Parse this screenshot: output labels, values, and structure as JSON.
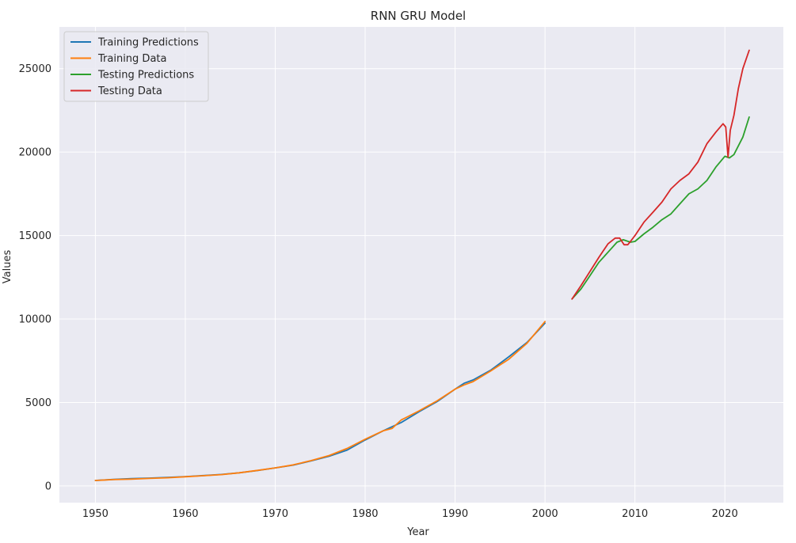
{
  "chart_data": {
    "type": "line",
    "title": "RNN GRU Model",
    "xlabel": "Year",
    "ylabel": "Values",
    "xlim": [
      1946,
      2026.5
    ],
    "ylim": [
      -1000,
      27500
    ],
    "xticks": [
      1950,
      1960,
      1970,
      1980,
      1990,
      2000,
      2010,
      2020
    ],
    "yticks": [
      0,
      5000,
      10000,
      15000,
      20000,
      25000
    ],
    "grid": true,
    "legend_position": "top-left",
    "background": "#eaeaf2",
    "series": [
      {
        "name": "Training Predictions",
        "color": "#1f77b4",
        "x": [
          1950,
          1952,
          1954,
          1956,
          1958,
          1960,
          1962,
          1964,
          1966,
          1968,
          1970,
          1972,
          1974,
          1976,
          1978,
          1980,
          1982,
          1984,
          1986,
          1988,
          1990,
          1991,
          1992,
          1994,
          1996,
          1998,
          2000
        ],
        "y": [
          330,
          390,
          440,
          470,
          510,
          560,
          620,
          690,
          790,
          920,
          1080,
          1250,
          1500,
          1780,
          2150,
          2750,
          3300,
          3800,
          4450,
          5050,
          5800,
          6150,
          6350,
          6950,
          7750,
          8600,
          9750
        ]
      },
      {
        "name": "Training Data",
        "color": "#ff7f0e",
        "x": [
          1950,
          1952,
          1954,
          1956,
          1958,
          1960,
          1962,
          1964,
          1966,
          1968,
          1970,
          1972,
          1974,
          1976,
          1978,
          1980,
          1981,
          1982,
          1983,
          1984,
          1986,
          1988,
          1990,
          1991,
          1992,
          1994,
          1996,
          1998,
          2000
        ],
        "y": [
          330,
          380,
          410,
          450,
          490,
          550,
          610,
          680,
          790,
          930,
          1080,
          1260,
          1520,
          1820,
          2250,
          2800,
          3050,
          3300,
          3450,
          3950,
          4500,
          5100,
          5800,
          6050,
          6250,
          6900,
          7600,
          8550,
          9850
        ]
      },
      {
        "name": "Testing Predictions",
        "color": "#2ca02c",
        "x": [
          2003,
          2004,
          2005,
          2006,
          2007,
          2008,
          2008.7,
          2009.5,
          2010,
          2011,
          2012,
          2013,
          2014,
          2015,
          2016,
          2017,
          2018,
          2019,
          2020,
          2020.5,
          2021,
          2022,
          2022.7
        ],
        "y": [
          11200,
          11800,
          12600,
          13400,
          14000,
          14600,
          14750,
          14600,
          14650,
          15100,
          15500,
          15950,
          16300,
          16900,
          17500,
          17800,
          18300,
          19100,
          19750,
          19650,
          19850,
          20900,
          22100
        ]
      },
      {
        "name": "Testing Data",
        "color": "#d62728",
        "x": [
          2003,
          2004,
          2005,
          2006,
          2007,
          2007.8,
          2008.3,
          2008.8,
          2009.2,
          2009.5,
          2010,
          2011,
          2012,
          2013,
          2014,
          2015,
          2016,
          2017,
          2018,
          2019,
          2019.8,
          2020.1,
          2020.35,
          2020.6,
          2021,
          2021.5,
          2022,
          2022.7
        ],
        "y": [
          11200,
          12000,
          12850,
          13700,
          14500,
          14850,
          14850,
          14450,
          14450,
          14650,
          15000,
          15800,
          16400,
          17000,
          17800,
          18300,
          18700,
          19400,
          20500,
          21200,
          21700,
          21500,
          19700,
          21300,
          22200,
          23800,
          25000,
          26100
        ]
      }
    ]
  }
}
